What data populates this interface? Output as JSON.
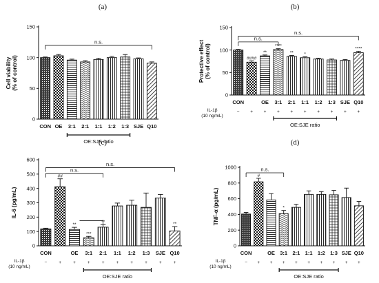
{
  "chart_data": [
    {
      "id": "a",
      "type": "bar",
      "panel_letter": "(a)",
      "ylabel": "Cell viability\n(% of control)",
      "ylim": [
        0,
        150
      ],
      "yticks": [
        "0",
        "50",
        "100",
        "150"
      ],
      "categories": [
        "CON",
        "OE",
        "3:1",
        "2:1",
        "1:1",
        "1:2",
        "1:3",
        "SJE",
        "Q10"
      ],
      "values": [
        100,
        103,
        96,
        93,
        97,
        100,
        101,
        98,
        91
      ],
      "errors": [
        1,
        2,
        1.5,
        2,
        2,
        2,
        4,
        1.5,
        2
      ],
      "patterns": [
        "dots",
        "check",
        "hlines",
        "wavy",
        "vlines",
        "vlines",
        "grid",
        "vlines",
        "diag"
      ],
      "annotations": [
        {
          "text": "n.s.",
          "from": "CON",
          "to": "Q10",
          "y": 120
        }
      ],
      "group_label": "OE:SJE ratio",
      "group_span": [
        "3:1",
        "1:3"
      ]
    },
    {
      "id": "b",
      "type": "bar",
      "panel_letter": "(b)",
      "ylabel": "Protective effect\n(% of control)",
      "ylim": [
        0,
        150
      ],
      "yticks": [
        "0",
        "50",
        "100",
        "150"
      ],
      "categories": [
        "CON",
        "",
        "OE",
        "3:1",
        "2:1",
        "1:1",
        "1:2",
        "1:3",
        "SJE",
        "Q10"
      ],
      "values": [
        100,
        73,
        87,
        101,
        86,
        83,
        80,
        78,
        77,
        94
      ],
      "errors": [
        1.5,
        3,
        2,
        2,
        2,
        2,
        2,
        2,
        2,
        3
      ],
      "patterns": [
        "dots",
        "check",
        "hlines",
        "wavy",
        "vlines",
        "vlines",
        "vlines",
        "grid",
        "vlines",
        "diag"
      ],
      "sig_labels": [
        "",
        "####",
        "**",
        "****",
        "**",
        "*",
        "",
        "",
        "",
        "****"
      ],
      "annotations": [
        {
          "text": "n.s.",
          "from": "CON",
          "to": "3:1",
          "y": 118
        },
        {
          "text": "n.s.",
          "from": "CON",
          "to": "Q10",
          "y": 131
        }
      ],
      "treatment_label": "IL-1β",
      "treatment_conc": "(10 ng/mL)",
      "treatment_signs": [
        "−",
        "+",
        "+",
        "+",
        "+",
        "+",
        "+",
        "+",
        "+",
        "+"
      ],
      "group_label": "OE:SJE ratio",
      "group_span": [
        "3:1",
        "1:3"
      ]
    },
    {
      "id": "c",
      "type": "bar",
      "panel_letter": "(c)",
      "ylabel": "IL-6 (pg/mL)",
      "ylim": [
        0,
        600
      ],
      "yticks": [
        "0",
        "100",
        "200",
        "300",
        "400",
        "500",
        "600"
      ],
      "categories": [
        "CON",
        "",
        "OE",
        "3:1",
        "2:1",
        "1:1",
        "1:2",
        "1:3",
        "SJE",
        "Q10"
      ],
      "values": [
        118,
        412,
        114,
        56,
        130,
        278,
        283,
        268,
        333,
        104
      ],
      "errors": [
        5,
        55,
        15,
        10,
        18,
        20,
        35,
        100,
        25,
        30
      ],
      "patterns": [
        "dots",
        "check",
        "hlines",
        "wavy",
        "vlines",
        "vlines",
        "vlines",
        "grid",
        "vlines",
        "diag"
      ],
      "sig_labels": [
        "",
        "##",
        "**",
        "***",
        "**",
        "",
        "",
        "",
        "",
        "**"
      ],
      "annotations": [
        {
          "text": "n.s.",
          "from": "CON",
          "to": "2:1",
          "y": 505
        },
        {
          "text": "n.s.",
          "from": "CON",
          "to": "Q10",
          "y": 545
        }
      ],
      "treatment_label": "IL-1β",
      "treatment_conc": "(10 ng/mL)",
      "treatment_signs": [
        "−",
        "+",
        "+",
        "+",
        "+",
        "+",
        "+",
        "+",
        "+",
        "+"
      ],
      "group_label": "OE:SJE ratio",
      "group_span": [
        "3:1",
        "1:3"
      ]
    },
    {
      "id": "d",
      "type": "bar",
      "panel_letter": "(d)",
      "ylabel": "TNF-α (pg/mL)",
      "ylim": [
        0,
        1000
      ],
      "yticks": [
        "0",
        "200",
        "400",
        "600",
        "800",
        "1000"
      ],
      "categories": [
        "CON",
        "",
        "OE",
        "3:1",
        "2:1",
        "1:1",
        "1:2",
        "1:3",
        "SJE",
        "Q10"
      ],
      "values": [
        405,
        815,
        585,
        410,
        490,
        655,
        655,
        650,
        615,
        510
      ],
      "errors": [
        20,
        45,
        80,
        40,
        40,
        45,
        35,
        55,
        120,
        55
      ],
      "patterns": [
        "dots",
        "check",
        "hlines",
        "wavy",
        "vlines",
        "vlines",
        "vlines",
        "grid",
        "vlines",
        "diag"
      ],
      "sig_labels": [
        "",
        "#",
        "",
        "*",
        "",
        "",
        "",
        "",
        "",
        ""
      ],
      "annotations": [
        {
          "text": "n.s.",
          "from": "CON",
          "to": "3:1",
          "y": 930
        }
      ],
      "treatment_label": "IL-1β",
      "treatment_conc": "(10 ng/mL)",
      "treatment_signs": [
        "−",
        "+",
        "+",
        "+",
        "+",
        "+",
        "+",
        "+",
        "+",
        "+"
      ],
      "group_label": "OE:SJE ratio",
      "group_span": [
        "3:1",
        "1:3"
      ]
    }
  ]
}
